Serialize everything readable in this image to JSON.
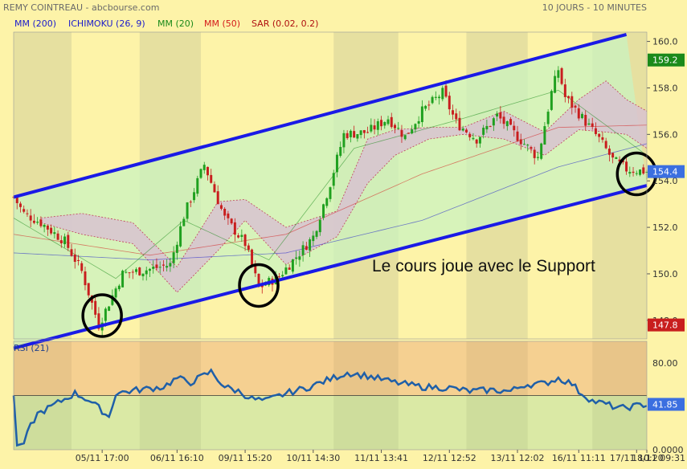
{
  "header": {
    "title": "REMY COINTREAU - abcbourse.com",
    "period": "10 JOURS - 10 MINUTES"
  },
  "legend": [
    {
      "label": "MM (200)",
      "color": "#1a1acc"
    },
    {
      "label": "ICHIMOKU (26, 9)",
      "color": "#1a1acc"
    },
    {
      "label": "MM (20)",
      "color": "#1a8a1a"
    },
    {
      "label": "MM (50)",
      "color": "#d41a1a"
    },
    {
      "label": "SAR (0.02, 0.2)",
      "color": "#b01010"
    }
  ],
  "annotation": "Le cours joue avec le Support",
  "colors": {
    "bg_yellow": "#fdf3a8",
    "session_band": "#e6e0a0",
    "channel_fill": "#c9f3c0",
    "channel_line": "#1a1ae6",
    "cloud_fill": "#d8c2d0",
    "cloud_edge": "#c0405a",
    "candle_up": "#1fa01f",
    "candle_down": "#c81e1e",
    "rsi_line": "#1f5fa8",
    "rsi_upper_zone": "#f3c98d",
    "rsi_lower_zone": "#d3e6a4",
    "label_green": "#1a8a1a",
    "label_blue": "#3b6fe0",
    "label_red": "#c81e1e"
  },
  "chart_data": [
    {
      "type": "candlestick",
      "title": "REMY COINTREAU",
      "subtitle": "10 JOURS - 10 MINUTES",
      "x_tick_labels": [
        "05/11 17:00",
        "06/11 16:10",
        "09/11 15:20",
        "10/11 14:30",
        "11/11 13:41",
        "12/11 12:52",
        "13/11 12:02",
        "16/11 11:11",
        "17/11 10:20",
        "18/11 09:31"
      ],
      "y_tick_labels": [
        "148.0",
        "150.0",
        "152.0",
        "154.0",
        "156.0",
        "158.0",
        "160.0"
      ],
      "ylim": [
        147.2,
        160.4
      ],
      "price_path": [
        [
          0,
          153.3
        ],
        [
          3,
          152.6
        ],
        [
          8,
          152.2
        ],
        [
          15,
          151.4
        ],
        [
          20,
          150.1
        ],
        [
          25,
          147.8
        ],
        [
          32,
          150.0
        ],
        [
          40,
          150.2
        ],
        [
          46,
          150.4
        ],
        [
          50,
          152.5
        ],
        [
          56,
          154.7
        ],
        [
          62,
          152.4
        ],
        [
          68,
          151.3
        ],
        [
          72,
          149.4
        ],
        [
          78,
          149.9
        ],
        [
          84,
          150.9
        ],
        [
          88,
          151.6
        ],
        [
          93,
          153.9
        ],
        [
          97,
          156.0
        ],
        [
          104,
          156.1
        ],
        [
          110,
          156.7
        ],
        [
          115,
          155.9
        ],
        [
          120,
          157.0
        ],
        [
          126,
          157.8
        ],
        [
          130,
          156.5
        ],
        [
          136,
          155.8
        ],
        [
          142,
          156.8
        ],
        [
          148,
          155.9
        ],
        [
          154,
          155.0
        ],
        [
          158,
          157.8
        ],
        [
          160,
          158.8
        ],
        [
          162,
          157.6
        ],
        [
          166,
          156.9
        ],
        [
          172,
          155.8
        ],
        [
          176,
          154.9
        ],
        [
          180,
          154.5
        ],
        [
          186,
          154.4
        ]
      ],
      "mm200": [
        [
          0,
          150.9
        ],
        [
          40,
          150.6
        ],
        [
          80,
          150.9
        ],
        [
          120,
          152.3
        ],
        [
          160,
          154.6
        ],
        [
          186,
          155.6
        ]
      ],
      "mm50": [
        [
          0,
          151.7
        ],
        [
          40,
          150.8
        ],
        [
          80,
          151.7
        ],
        [
          120,
          154.3
        ],
        [
          160,
          156.3
        ],
        [
          186,
          156.4
        ]
      ],
      "mm20": [
        [
          0,
          152.4
        ],
        [
          30,
          149.8
        ],
        [
          50,
          152.3
        ],
        [
          75,
          150.6
        ],
        [
          100,
          155.4
        ],
        [
          130,
          156.6
        ],
        [
          160,
          157.9
        ],
        [
          186,
          155.1
        ]
      ],
      "cloud": {
        "upper": [
          [
            8,
            152.4
          ],
          [
            20,
            152.6
          ],
          [
            35,
            152.2
          ],
          [
            48,
            150.3
          ],
          [
            60,
            153.1
          ],
          [
            68,
            153.2
          ],
          [
            80,
            152.0
          ],
          [
            95,
            152.7
          ],
          [
            104,
            155.8
          ],
          [
            112,
            156.2
          ],
          [
            122,
            156.3
          ],
          [
            132,
            156.3
          ],
          [
            144,
            157.0
          ],
          [
            156,
            156.1
          ],
          [
            166,
            157.5
          ],
          [
            174,
            158.3
          ],
          [
            180,
            157.5
          ],
          [
            186,
            157.0
          ]
        ],
        "lower": [
          [
            8,
            152.2
          ],
          [
            20,
            151.7
          ],
          [
            35,
            151.3
          ],
          [
            48,
            149.2
          ],
          [
            60,
            151.0
          ],
          [
            68,
            152.3
          ],
          [
            80,
            150.4
          ],
          [
            95,
            151.6
          ],
          [
            104,
            153.9
          ],
          [
            112,
            155.1
          ],
          [
            122,
            155.8
          ],
          [
            132,
            156.0
          ],
          [
            144,
            155.8
          ],
          [
            156,
            155.1
          ],
          [
            166,
            156.2
          ],
          [
            174,
            156.1
          ],
          [
            180,
            156.0
          ],
          [
            186,
            155.4
          ]
        ]
      },
      "channel": {
        "upper": [
          [
            0,
            153.3
          ],
          [
            180,
            160.3
          ]
        ],
        "lower": [
          [
            0,
            146.8
          ],
          [
            186,
            153.8
          ]
        ]
      },
      "circles": [
        {
          "x": 26,
          "y": 148.2
        },
        {
          "x": 72,
          "y": 149.5
        },
        {
          "x": 183,
          "y": 154.3
        }
      ],
      "price_labels": [
        {
          "text": "159.2",
          "value": 159.2,
          "color": "#1a8a1a"
        },
        {
          "text": "154.4",
          "value": 154.4,
          "color": "#3b6fe0"
        },
        {
          "text": "147.8",
          "value": 147.8,
          "color": "#c81e1e"
        }
      ]
    },
    {
      "type": "line",
      "title": "RSI (21)",
      "y_tick_labels": [
        "80.00",
        "0.0000"
      ],
      "ylim": [
        0,
        100
      ],
      "reference": 50,
      "current_label": "41.85",
      "rsi_path": [
        [
          0,
          50
        ],
        [
          1,
          4
        ],
        [
          3,
          6
        ],
        [
          5,
          22
        ],
        [
          7,
          33
        ],
        [
          10,
          38
        ],
        [
          14,
          45
        ],
        [
          18,
          52
        ],
        [
          22,
          46
        ],
        [
          26,
          36
        ],
        [
          28,
          30
        ],
        [
          30,
          52
        ],
        [
          36,
          55
        ],
        [
          44,
          58
        ],
        [
          48,
          66
        ],
        [
          52,
          62
        ],
        [
          58,
          72
        ],
        [
          62,
          58
        ],
        [
          66,
          54
        ],
        [
          70,
          47
        ],
        [
          74,
          45
        ],
        [
          80,
          52
        ],
        [
          86,
          57
        ],
        [
          92,
          64
        ],
        [
          98,
          71
        ],
        [
          104,
          68
        ],
        [
          112,
          62
        ],
        [
          120,
          58
        ],
        [
          128,
          57
        ],
        [
          134,
          54
        ],
        [
          140,
          55
        ],
        [
          146,
          54
        ],
        [
          150,
          60
        ],
        [
          156,
          61
        ],
        [
          160,
          66
        ],
        [
          164,
          61
        ],
        [
          166,
          54
        ],
        [
          170,
          45
        ],
        [
          174,
          42
        ],
        [
          178,
          38
        ],
        [
          182,
          40
        ],
        [
          186,
          42
        ]
      ]
    }
  ]
}
